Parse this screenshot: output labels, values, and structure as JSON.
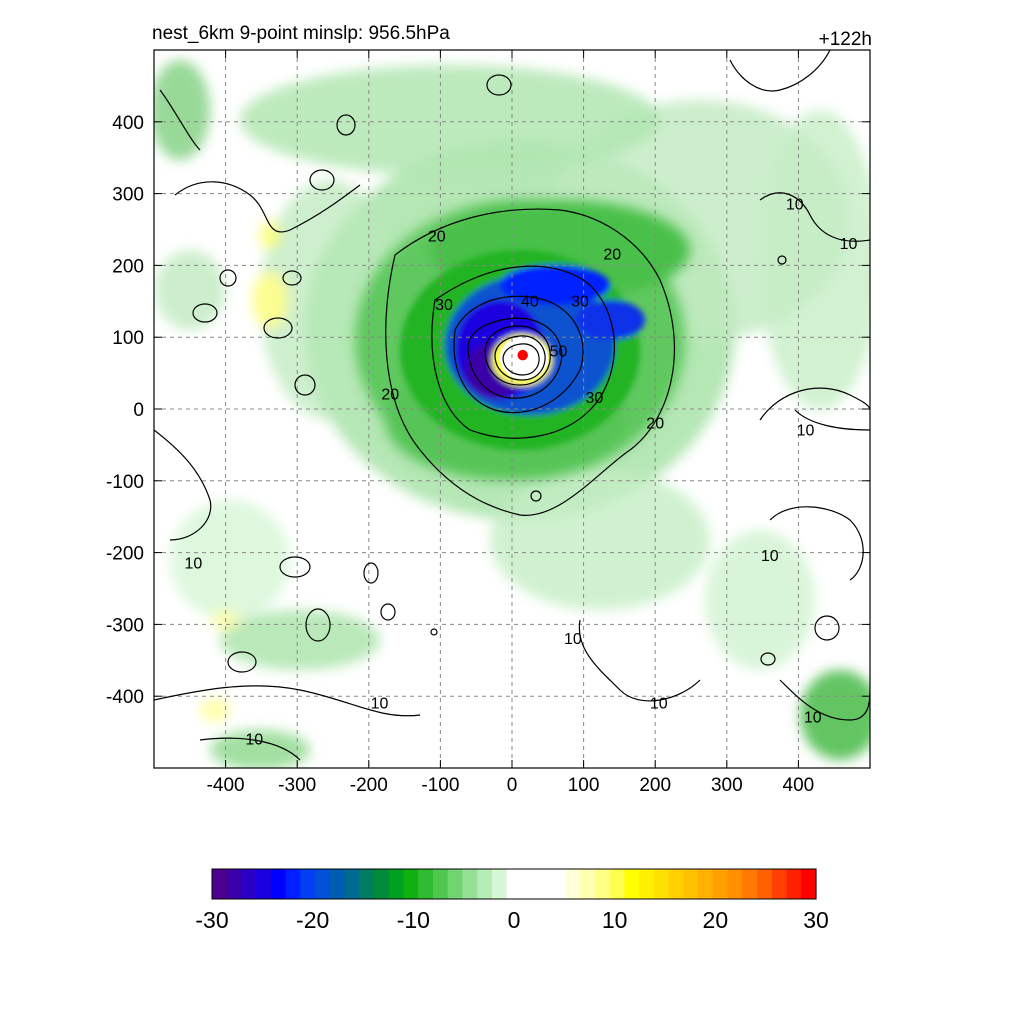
{
  "header": {
    "left_title": "nest_6km  9-point minslp: 956.5hPa",
    "right_title": "+122h"
  },
  "chart_data": {
    "type": "heatmap",
    "title": "nest_6km  9-point minslp: 956.5hPa",
    "forecast_hour_label": "+122h",
    "xlabel": "",
    "ylabel": "",
    "xlim": [
      -500,
      500
    ],
    "ylim": [
      -500,
      500
    ],
    "xticks": [
      -400,
      -300,
      -200,
      -100,
      0,
      100,
      200,
      300,
      400
    ],
    "yticks": [
      400,
      300,
      200,
      100,
      0,
      -100,
      -200,
      -300,
      -400
    ],
    "grid": true,
    "storm_center_marker": {
      "x": 15,
      "y": 75,
      "color": "#ff0000"
    },
    "contours": {
      "color": "#000000",
      "labeled_levels": [
        10,
        20,
        30,
        40,
        50
      ],
      "labels": [
        {
          "text": "20",
          "x": -105,
          "y": 240
        },
        {
          "text": "20",
          "x": 140,
          "y": 215
        },
        {
          "text": "30",
          "x": -95,
          "y": 145
        },
        {
          "text": "40",
          "x": 25,
          "y": 150
        },
        {
          "text": "30",
          "x": 95,
          "y": 150
        },
        {
          "text": "50",
          "x": 65,
          "y": 80
        },
        {
          "text": "20",
          "x": -170,
          "y": 20
        },
        {
          "text": "30",
          "x": 115,
          "y": 15
        },
        {
          "text": "20",
          "x": 200,
          "y": -20
        },
        {
          "text": "10",
          "x": 395,
          "y": 285
        },
        {
          "text": "10",
          "x": 470,
          "y": 230
        },
        {
          "text": "10",
          "x": 410,
          "y": -30
        },
        {
          "text": "10",
          "x": 360,
          "y": -205
        },
        {
          "text": "10",
          "x": -445,
          "y": -215
        },
        {
          "text": "10",
          "x": 85,
          "y": -320
        },
        {
          "text": "10",
          "x": 205,
          "y": -410
        },
        {
          "text": "10",
          "x": -185,
          "y": -410
        },
        {
          "text": "10",
          "x": 420,
          "y": -430
        },
        {
          "text": "10",
          "x": -360,
          "y": -460
        }
      ]
    },
    "colorbar": {
      "min": -30,
      "max": 30,
      "ticks": [
        "-30",
        "-20",
        "-10",
        "0",
        "10",
        "20",
        "30"
      ],
      "colors": [
        "#4b0090",
        "#3a00a8",
        "#2a00c8",
        "#1a00e0",
        "#0000ff",
        "#0020ff",
        "#0040f0",
        "#0050d8",
        "#005cb0",
        "#006a90",
        "#007c60",
        "#008c38",
        "#00a020",
        "#10b010",
        "#30bc30",
        "#50c850",
        "#70d470",
        "#96e096",
        "#b6ecb6",
        "#d6f6d6",
        "#ffffff",
        "#ffffff",
        "#ffffff",
        "#ffffff",
        "#ffffd8",
        "#ffffb0",
        "#ffff88",
        "#ffff50",
        "#ffff00",
        "#fff000",
        "#ffe000",
        "#ffd000",
        "#ffc000",
        "#ffb000",
        "#ffa000",
        "#ff9000",
        "#ff7800",
        "#ff6000",
        "#ff4000",
        "#ff2000",
        "#ff0000"
      ]
    }
  }
}
